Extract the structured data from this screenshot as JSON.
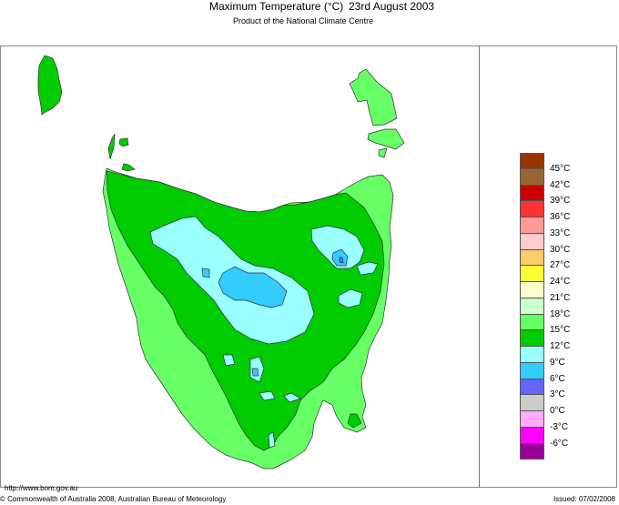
{
  "header": {
    "title": "Maximum Temperature (°C)",
    "date": "23rd August 2003",
    "subtitle": "Product of the National Climate Centre"
  },
  "map": {
    "region": "Tasmania",
    "variable": "Maximum Temperature",
    "units": "°C",
    "shading_colors": {
      "9_to_12": "#99FFFF",
      "6_to_9": "#33CCFF",
      "3_to_6": "#6666FF",
      "12_to_15": "#00CC00",
      "15_to_18": "#66FF66"
    }
  },
  "legend": {
    "bands": [
      {
        "color": "#993300",
        "label": "45°C"
      },
      {
        "color": "#996633",
        "label": "42°C"
      },
      {
        "color": "#CC0000",
        "label": "39°C"
      },
      {
        "color": "#FF3333",
        "label": "36°C"
      },
      {
        "color": "#FF9999",
        "label": "33°C"
      },
      {
        "color": "#FFCCCC",
        "label": "30°C"
      },
      {
        "color": "#FFCC66",
        "label": "27°C"
      },
      {
        "color": "#FFFF33",
        "label": "24°C"
      },
      {
        "color": "#FFFFCC",
        "label": "21°C"
      },
      {
        "color": "#CCFFCC",
        "label": "18°C"
      },
      {
        "color": "#66FF66",
        "label": "15°C"
      },
      {
        "color": "#00CC00",
        "label": "12°C"
      },
      {
        "color": "#99FFFF",
        "label": "9°C"
      },
      {
        "color": "#33CCFF",
        "label": "6°C"
      },
      {
        "color": "#6666FF",
        "label": "3°C"
      },
      {
        "color": "#CCCCCC",
        "label": "0°C"
      },
      {
        "color": "#FFAAFF",
        "label": "-3°C"
      },
      {
        "color": "#FF00FF",
        "label": "-6°C"
      },
      {
        "color": "#990099",
        "label": ""
      }
    ]
  },
  "footer": {
    "url": "http://www.bom.gov.au",
    "copyright": "© Commonwealth of Australia 2008, Australian Bureau of Meteorology",
    "issued": "Issued: 07/02/2008"
  }
}
